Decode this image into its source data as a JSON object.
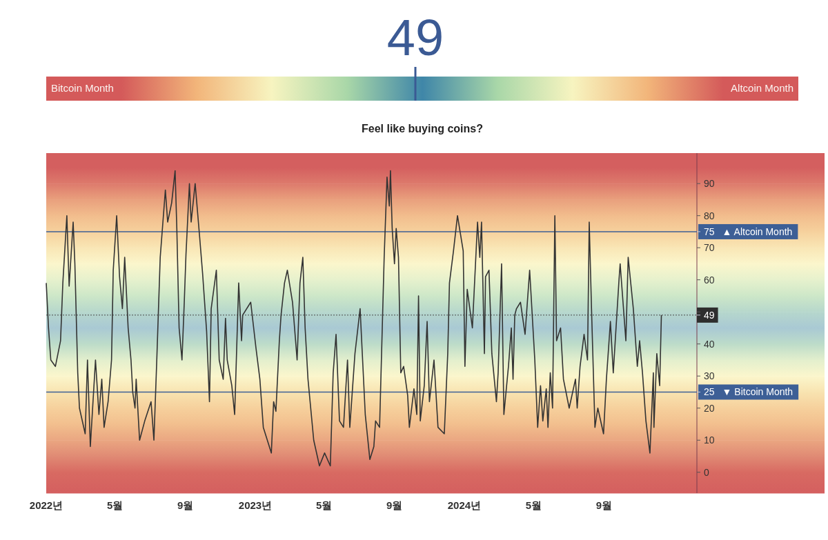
{
  "chart_data": [
    {
      "type": "other",
      "data_labels": true,
      "values": [
        49
      ],
      "annotations": [
        "Bitcoin Month",
        "Altcoin Month",
        "Feel like buying coins?"
      ]
    },
    {
      "type": "line",
      "xlim": [
        "2022-01-01",
        "2025-02-10"
      ],
      "ylim": [
        -6.5,
        99.5
      ],
      "yticks": [
        0,
        10,
        20,
        25,
        30,
        40,
        49,
        {
          "value": 50,
          "label": null
        },
        60,
        70,
        75,
        80,
        90
      ],
      "xticks": [
        {
          "value": "2022-01-01",
          "label": "2022년"
        },
        {
          "value": "2022-05-01",
          "label": "5월"
        },
        {
          "value": "2022-09-01",
          "label": "9월"
        },
        {
          "value": "2023-01-01",
          "label": "2023년"
        },
        {
          "value": "2023-05-01",
          "label": "5월"
        },
        {
          "value": "2023-09-01",
          "label": "9월"
        },
        {
          "value": "2024-01-01",
          "label": "2024년"
        },
        {
          "value": "2024-05-01",
          "label": "5월"
        },
        {
          "value": "2024-09-01",
          "label": "9월"
        }
      ],
      "bands": [
        {
          "axis": "y",
          "from": -6.5,
          "to": 0,
          "color": "#d45f5f"
        },
        {
          "axis": "y",
          "from": 0,
          "to": 5,
          "color": "#d86a62"
        },
        {
          "axis": "y",
          "from": 5,
          "to": 10,
          "color": "#e08a74"
        },
        {
          "axis": "y",
          "from": 10,
          "to": 15,
          "color": "#eaa681"
        },
        {
          "axis": "y",
          "from": 15,
          "to": 20,
          "color": "#f2bf8e"
        },
        {
          "axis": "y",
          "from": 20,
          "to": 25,
          "color": "#f6d09c"
        },
        {
          "axis": "y",
          "from": 25,
          "to": 30,
          "color": "#f8e3b0"
        },
        {
          "axis": "y",
          "from": 30,
          "to": 35,
          "color": "#fbf6cc"
        },
        {
          "axis": "y",
          "from": 35,
          "to": 40,
          "color": "#e3efcd"
        },
        {
          "axis": "y",
          "from": 40,
          "to": 45,
          "color": "#bddcc9"
        },
        {
          "axis": "y",
          "from": 45,
          "to": 50,
          "color": "#a9c9d4"
        },
        {
          "axis": "y",
          "from": 50,
          "to": 55,
          "color": "#b6d7cc"
        },
        {
          "axis": "y",
          "from": 55,
          "to": 60,
          "color": "#cde7c8"
        },
        {
          "axis": "y",
          "from": 60,
          "to": 65,
          "color": "#e6f1cd"
        },
        {
          "axis": "y",
          "from": 65,
          "to": 70,
          "color": "#fbf6cc"
        },
        {
          "axis": "y",
          "from": 70,
          "to": 75,
          "color": "#f9e6b5"
        },
        {
          "axis": "y",
          "from": 75,
          "to": 80,
          "color": "#f6d19d"
        },
        {
          "axis": "y",
          "from": 80,
          "to": 85,
          "color": "#f2bd8d"
        },
        {
          "axis": "y",
          "from": 85,
          "to": 90,
          "color": "#e9a07d"
        },
        {
          "axis": "y",
          "from": 90,
          "to": 95,
          "color": "#dd7a6c"
        },
        {
          "axis": "y",
          "from": 95,
          "to": 99.5,
          "color": "#d45f5f"
        }
      ],
      "ref_lines": [
        {
          "axis": "y",
          "value": 75,
          "label": "▲ Altcoin Month",
          "color": "#3d5f96",
          "line_style": "solid"
        },
        {
          "axis": "y",
          "value": 25,
          "label": "▼ Bitcoin Month",
          "color": "#3d5f96",
          "line_style": "solid"
        },
        {
          "axis": "y",
          "value": 49,
          "color": "#4a4a4a",
          "line_style": "dotted"
        }
      ],
      "series": [
        {
          "color": "#333333",
          "x": [
            "2022-01-01",
            "2022-01-05",
            "2022-01-09",
            "2022-01-17",
            "2022-01-26",
            "2022-01-30",
            "2022-02-06",
            "2022-02-10",
            "2022-02-17",
            "2022-02-20",
            "2022-02-25",
            "2022-02-28",
            "2022-03-10",
            "2022-03-14",
            "2022-03-19",
            "2022-03-28",
            "2022-04-03",
            "2022-04-08",
            "2022-04-12",
            "2022-04-19",
            "2022-04-25",
            "2022-04-28",
            "2022-05-04",
            "2022-05-09",
            "2022-05-14",
            "2022-05-18",
            "2022-05-24",
            "2022-05-29",
            "2022-06-01",
            "2022-06-05",
            "2022-06-07",
            "2022-06-13",
            "2022-06-22",
            "2022-07-03",
            "2022-07-08",
            "2022-07-13",
            "2022-07-19",
            "2022-07-28",
            "2022-08-01",
            "2022-08-08",
            "2022-08-14",
            "2022-08-17",
            "2022-08-21",
            "2022-08-26",
            "2022-08-30",
            "2022-09-02",
            "2022-09-08",
            "2022-09-11",
            "2022-09-18",
            "2022-09-26",
            "2022-10-01",
            "2022-10-08",
            "2022-10-13",
            "2022-10-16",
            "2022-10-25",
            "2022-10-30",
            "2022-11-06",
            "2022-11-10",
            "2022-11-13",
            "2022-11-21",
            "2022-11-26",
            "2022-12-03",
            "2022-12-08",
            "2022-12-10",
            "2022-12-24",
            "2023-01-02",
            "2023-01-09",
            "2023-01-15",
            "2023-01-29",
            "2023-02-02",
            "2023-02-06",
            "2023-02-12",
            "2023-02-15",
            "2023-02-21",
            "2023-02-26",
            "2023-03-07",
            "2023-03-15",
            "2023-03-20",
            "2023-03-25",
            "2023-03-29",
            "2023-04-03",
            "2023-04-13",
            "2023-04-23",
            "2023-05-02",
            "2023-05-12",
            "2023-05-17",
            "2023-05-22",
            "2023-05-28",
            "2023-06-04",
            "2023-06-11",
            "2023-06-15",
            "2023-06-24",
            "2023-07-03",
            "2023-07-12",
            "2023-07-20",
            "2023-07-27",
            "2023-07-30",
            "2023-08-06",
            "2023-08-14",
            "2023-08-19",
            "2023-08-23",
            "2023-08-25",
            "2023-08-28",
            "2023-09-01",
            "2023-09-04",
            "2023-09-08",
            "2023-09-12",
            "2023-09-17",
            "2023-09-24",
            "2023-09-27",
            "2023-10-05",
            "2023-10-10",
            "2023-10-13",
            "2023-10-16",
            "2023-10-23",
            "2023-10-28",
            "2023-11-01",
            "2023-11-09",
            "2023-11-16",
            "2023-11-27",
            "2023-12-03",
            "2023-12-06",
            "2023-12-13",
            "2023-12-20",
            "2023-12-30",
            "2024-01-02",
            "2024-01-06",
            "2024-01-15",
            "2024-01-24",
            "2024-01-28",
            "2024-01-31",
            "2024-02-05",
            "2024-02-07",
            "2024-02-13",
            "2024-02-18",
            "2024-02-26",
            "2024-02-29",
            "2024-03-06",
            "2024-03-10",
            "2024-03-18",
            "2024-03-23",
            "2024-03-26",
            "2024-03-29",
            "2024-04-01",
            "2024-04-08",
            "2024-04-16",
            "2024-04-24",
            "2024-05-03",
            "2024-05-08",
            "2024-05-13",
            "2024-05-17",
            "2024-05-23",
            "2024-05-26",
            "2024-05-30",
            "2024-06-03",
            "2024-06-07",
            "2024-06-10",
            "2024-06-17",
            "2024-06-22",
            "2024-07-02",
            "2024-07-13",
            "2024-07-16",
            "2024-07-21",
            "2024-07-28",
            "2024-08-03",
            "2024-08-06",
            "2024-08-10",
            "2024-08-16",
            "2024-08-21",
            "2024-08-31",
            "2024-09-05",
            "2024-09-12",
            "2024-09-17",
            "2024-09-27",
            "2024-09-29",
            "2024-10-04",
            "2024-10-09",
            "2024-10-13",
            "2024-10-22",
            "2024-10-29",
            "2024-11-02",
            "2024-11-07",
            "2024-11-13",
            "2024-11-20",
            "2024-11-26",
            "2024-11-27",
            "2024-12-02",
            "2024-12-07",
            "2024-12-10"
          ],
          "values": [
            59,
            45,
            35,
            33,
            41,
            59,
            80,
            58,
            78,
            65,
            31,
            20,
            12,
            35,
            8,
            35,
            18,
            29,
            14,
            22,
            35,
            63,
            80,
            61,
            51,
            67,
            45,
            35,
            25,
            20,
            29,
            10,
            16,
            22,
            10,
            35,
            67,
            88,
            78,
            84,
            94,
            76,
            45,
            35,
            53,
            68,
            90,
            78,
            90,
            73,
            62,
            44,
            22,
            51,
            63,
            35,
            29,
            48,
            35,
            27,
            18,
            59,
            41,
            49,
            53,
            39,
            29,
            14,
            6,
            22,
            19,
            41,
            49,
            59,
            63,
            53,
            35,
            59,
            67,
            45,
            29,
            10,
            2,
            6,
            2,
            31,
            43,
            16,
            14,
            35,
            14,
            37,
            51,
            18,
            4,
            8,
            16,
            14,
            67,
            92,
            83,
            94,
            76,
            65,
            76,
            67,
            31,
            33,
            24,
            14,
            26,
            18,
            55,
            16,
            27,
            47,
            22,
            35,
            14,
            12,
            37,
            59,
            69,
            80,
            69,
            33,
            57,
            45,
            78,
            67,
            78,
            37,
            61,
            63,
            37,
            22,
            31,
            65,
            18,
            33,
            45,
            29,
            49,
            51,
            53,
            43,
            63,
            35,
            14,
            27,
            16,
            26,
            14,
            31,
            20,
            80,
            41,
            45,
            29,
            20,
            29,
            20,
            33,
            43,
            35,
            78,
            51,
            14,
            20,
            12,
            29,
            47,
            31,
            60,
            65,
            53,
            41,
            67,
            51,
            33,
            41,
            31,
            16,
            6,
            31,
            14,
            37,
            27,
            49
          ]
        }
      ]
    }
  ]
}
